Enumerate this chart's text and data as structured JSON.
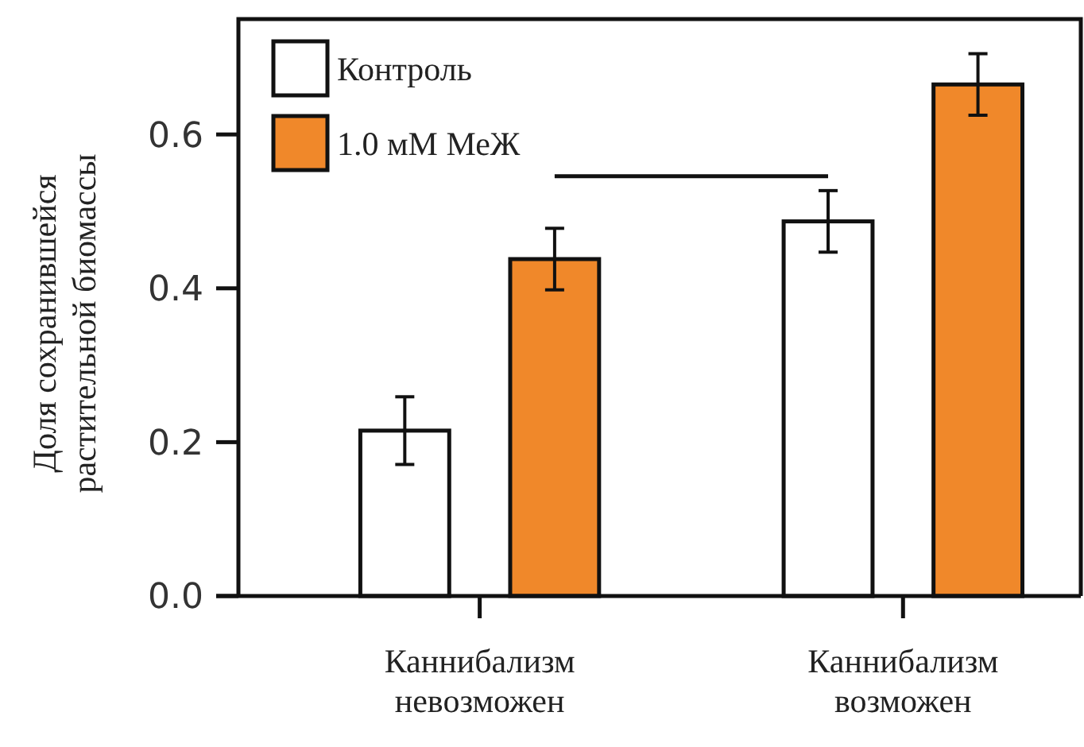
{
  "chart_data": {
    "type": "bar",
    "ylabel": "Доля сохранившейся\nрастительной биомассы",
    "categories": [
      "Каннибализм\nневозможен",
      "Каннибализм\nвозможен"
    ],
    "series": [
      {
        "name": "Контроль",
        "color": "#ffffff",
        "values": [
          0.215,
          0.487
        ],
        "errors": [
          0.044,
          0.04
        ]
      },
      {
        "name": "1.0 мМ МеЖ",
        "color": "#f0882a",
        "values": [
          0.438,
          0.665
        ],
        "errors": [
          0.04,
          0.04
        ]
      }
    ],
    "ylim": [
      0,
      0.75
    ],
    "yticks": [
      {
        "value": 0,
        "label": "0.0"
      },
      0.2,
      0.4,
      0.6
    ],
    "legend": "top left"
  }
}
